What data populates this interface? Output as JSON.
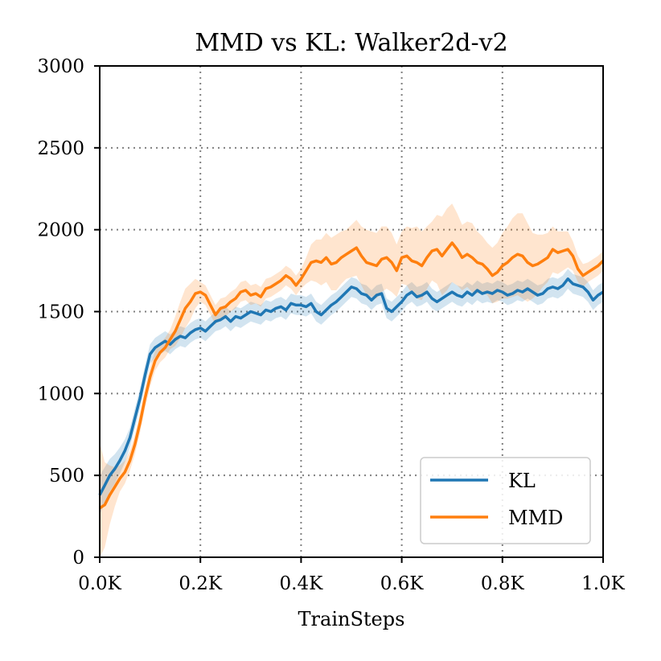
{
  "chart_data": {
    "type": "line",
    "title": "MMD vs KL: Walker2d-v2",
    "xlabel": "TrainSteps",
    "ylabel": "",
    "xlim": [
      0,
      1000
    ],
    "ylim": [
      0,
      3000
    ],
    "xticks": [
      0,
      200,
      400,
      600,
      800,
      1000
    ],
    "xtick_labels": [
      "0.0K",
      "0.2K",
      "0.4K",
      "0.6K",
      "0.8K",
      "1.0K"
    ],
    "yticks": [
      0,
      500,
      1000,
      1500,
      2000,
      2500,
      3000
    ],
    "ytick_labels": [
      "0",
      "500",
      "1000",
      "1500",
      "2000",
      "2500",
      "3000"
    ],
    "grid": true,
    "legend_position": "bottom-right",
    "x": [
      0,
      10,
      20,
      30,
      40,
      50,
      60,
      70,
      80,
      90,
      100,
      110,
      120,
      130,
      140,
      150,
      160,
      170,
      180,
      190,
      200,
      210,
      220,
      230,
      240,
      250,
      260,
      270,
      280,
      290,
      300,
      310,
      320,
      330,
      340,
      350,
      360,
      370,
      380,
      390,
      400,
      410,
      420,
      430,
      440,
      450,
      460,
      470,
      480,
      490,
      500,
      510,
      520,
      530,
      540,
      550,
      560,
      570,
      580,
      590,
      600,
      610,
      620,
      630,
      640,
      650,
      660,
      670,
      680,
      690,
      700,
      710,
      720,
      730,
      740,
      750,
      760,
      770,
      780,
      790,
      800,
      810,
      820,
      830,
      840,
      850,
      860,
      870,
      880,
      890,
      900,
      910,
      920,
      930,
      940,
      950,
      960,
      970,
      980,
      990,
      1000
    ],
    "series": [
      {
        "name": "KL",
        "color": "#1f77b4",
        "values": [
          380,
          440,
          500,
          540,
          590,
          650,
          730,
          850,
          970,
          1110,
          1240,
          1280,
          1300,
          1320,
          1300,
          1330,
          1350,
          1340,
          1370,
          1390,
          1400,
          1380,
          1410,
          1440,
          1450,
          1470,
          1440,
          1470,
          1460,
          1480,
          1500,
          1490,
          1480,
          1510,
          1500,
          1520,
          1530,
          1510,
          1550,
          1540,
          1540,
          1530,
          1550,
          1500,
          1480,
          1510,
          1540,
          1560,
          1590,
          1620,
          1650,
          1640,
          1610,
          1600,
          1570,
          1600,
          1610,
          1520,
          1500,
          1530,
          1560,
          1600,
          1620,
          1590,
          1600,
          1620,
          1580,
          1560,
          1580,
          1600,
          1620,
          1600,
          1590,
          1620,
          1600,
          1630,
          1610,
          1620,
          1610,
          1630,
          1620,
          1600,
          1610,
          1630,
          1620,
          1640,
          1620,
          1600,
          1610,
          1640,
          1650,
          1640,
          1660,
          1700,
          1670,
          1660,
          1650,
          1620,
          1570,
          1600,
          1620
        ],
        "band_width": [
          120,
          110,
          100,
          90,
          80,
          70,
          60,
          60,
          60,
          60,
          60,
          60,
          60,
          60,
          60,
          60,
          60,
          60,
          60,
          60,
          60,
          60,
          60,
          60,
          60,
          60,
          60,
          60,
          60,
          60,
          60,
          60,
          60,
          60,
          60,
          60,
          60,
          60,
          60,
          60,
          60,
          60,
          60,
          60,
          60,
          60,
          60,
          60,
          60,
          60,
          60,
          60,
          60,
          60,
          60,
          60,
          60,
          60,
          60,
          60,
          60,
          60,
          60,
          60,
          60,
          60,
          60,
          60,
          60,
          60,
          60,
          60,
          60,
          60,
          60,
          60,
          60,
          60,
          60,
          60,
          60,
          60,
          60,
          60,
          60,
          60,
          60,
          60,
          60,
          60,
          60,
          60,
          60,
          60,
          60,
          60,
          60,
          60,
          60,
          60,
          60
        ]
      },
      {
        "name": "MMD",
        "color": "#ff7f0e",
        "values": [
          300,
          320,
          380,
          430,
          480,
          520,
          590,
          690,
          820,
          970,
          1100,
          1200,
          1250,
          1280,
          1330,
          1380,
          1450,
          1520,
          1560,
          1610,
          1620,
          1600,
          1540,
          1480,
          1520,
          1530,
          1560,
          1580,
          1620,
          1630,
          1600,
          1610,
          1590,
          1640,
          1650,
          1670,
          1690,
          1720,
          1700,
          1660,
          1700,
          1750,
          1800,
          1810,
          1800,
          1830,
          1790,
          1800,
          1830,
          1850,
          1870,
          1890,
          1840,
          1800,
          1790,
          1780,
          1820,
          1830,
          1800,
          1750,
          1830,
          1840,
          1810,
          1800,
          1780,
          1830,
          1870,
          1880,
          1840,
          1880,
          1920,
          1880,
          1830,
          1850,
          1830,
          1800,
          1790,
          1760,
          1720,
          1740,
          1780,
          1800,
          1830,
          1850,
          1840,
          1800,
          1780,
          1790,
          1810,
          1830,
          1880,
          1860,
          1870,
          1880,
          1840,
          1760,
          1720,
          1740,
          1760,
          1780,
          1810
        ],
        "band_width": [
          400,
          260,
          180,
          120,
          80,
          70,
          60,
          60,
          60,
          60,
          60,
          60,
          60,
          60,
          60,
          90,
          110,
          120,
          110,
          90,
          60,
          60,
          60,
          60,
          60,
          60,
          60,
          60,
          60,
          60,
          60,
          60,
          60,
          60,
          60,
          60,
          60,
          60,
          60,
          60,
          60,
          80,
          110,
          130,
          140,
          150,
          160,
          170,
          160,
          150,
          160,
          170,
          180,
          200,
          200,
          200,
          200,
          190,
          180,
          160,
          160,
          180,
          200,
          220,
          210,
          190,
          180,
          210,
          240,
          250,
          240,
          220,
          200,
          200,
          210,
          190,
          170,
          160,
          170,
          180,
          200,
          220,
          240,
          250,
          260,
          240,
          200,
          180,
          160,
          150,
          140,
          130,
          120,
          110,
          90,
          80,
          70,
          60,
          60,
          60,
          60
        ]
      }
    ]
  }
}
